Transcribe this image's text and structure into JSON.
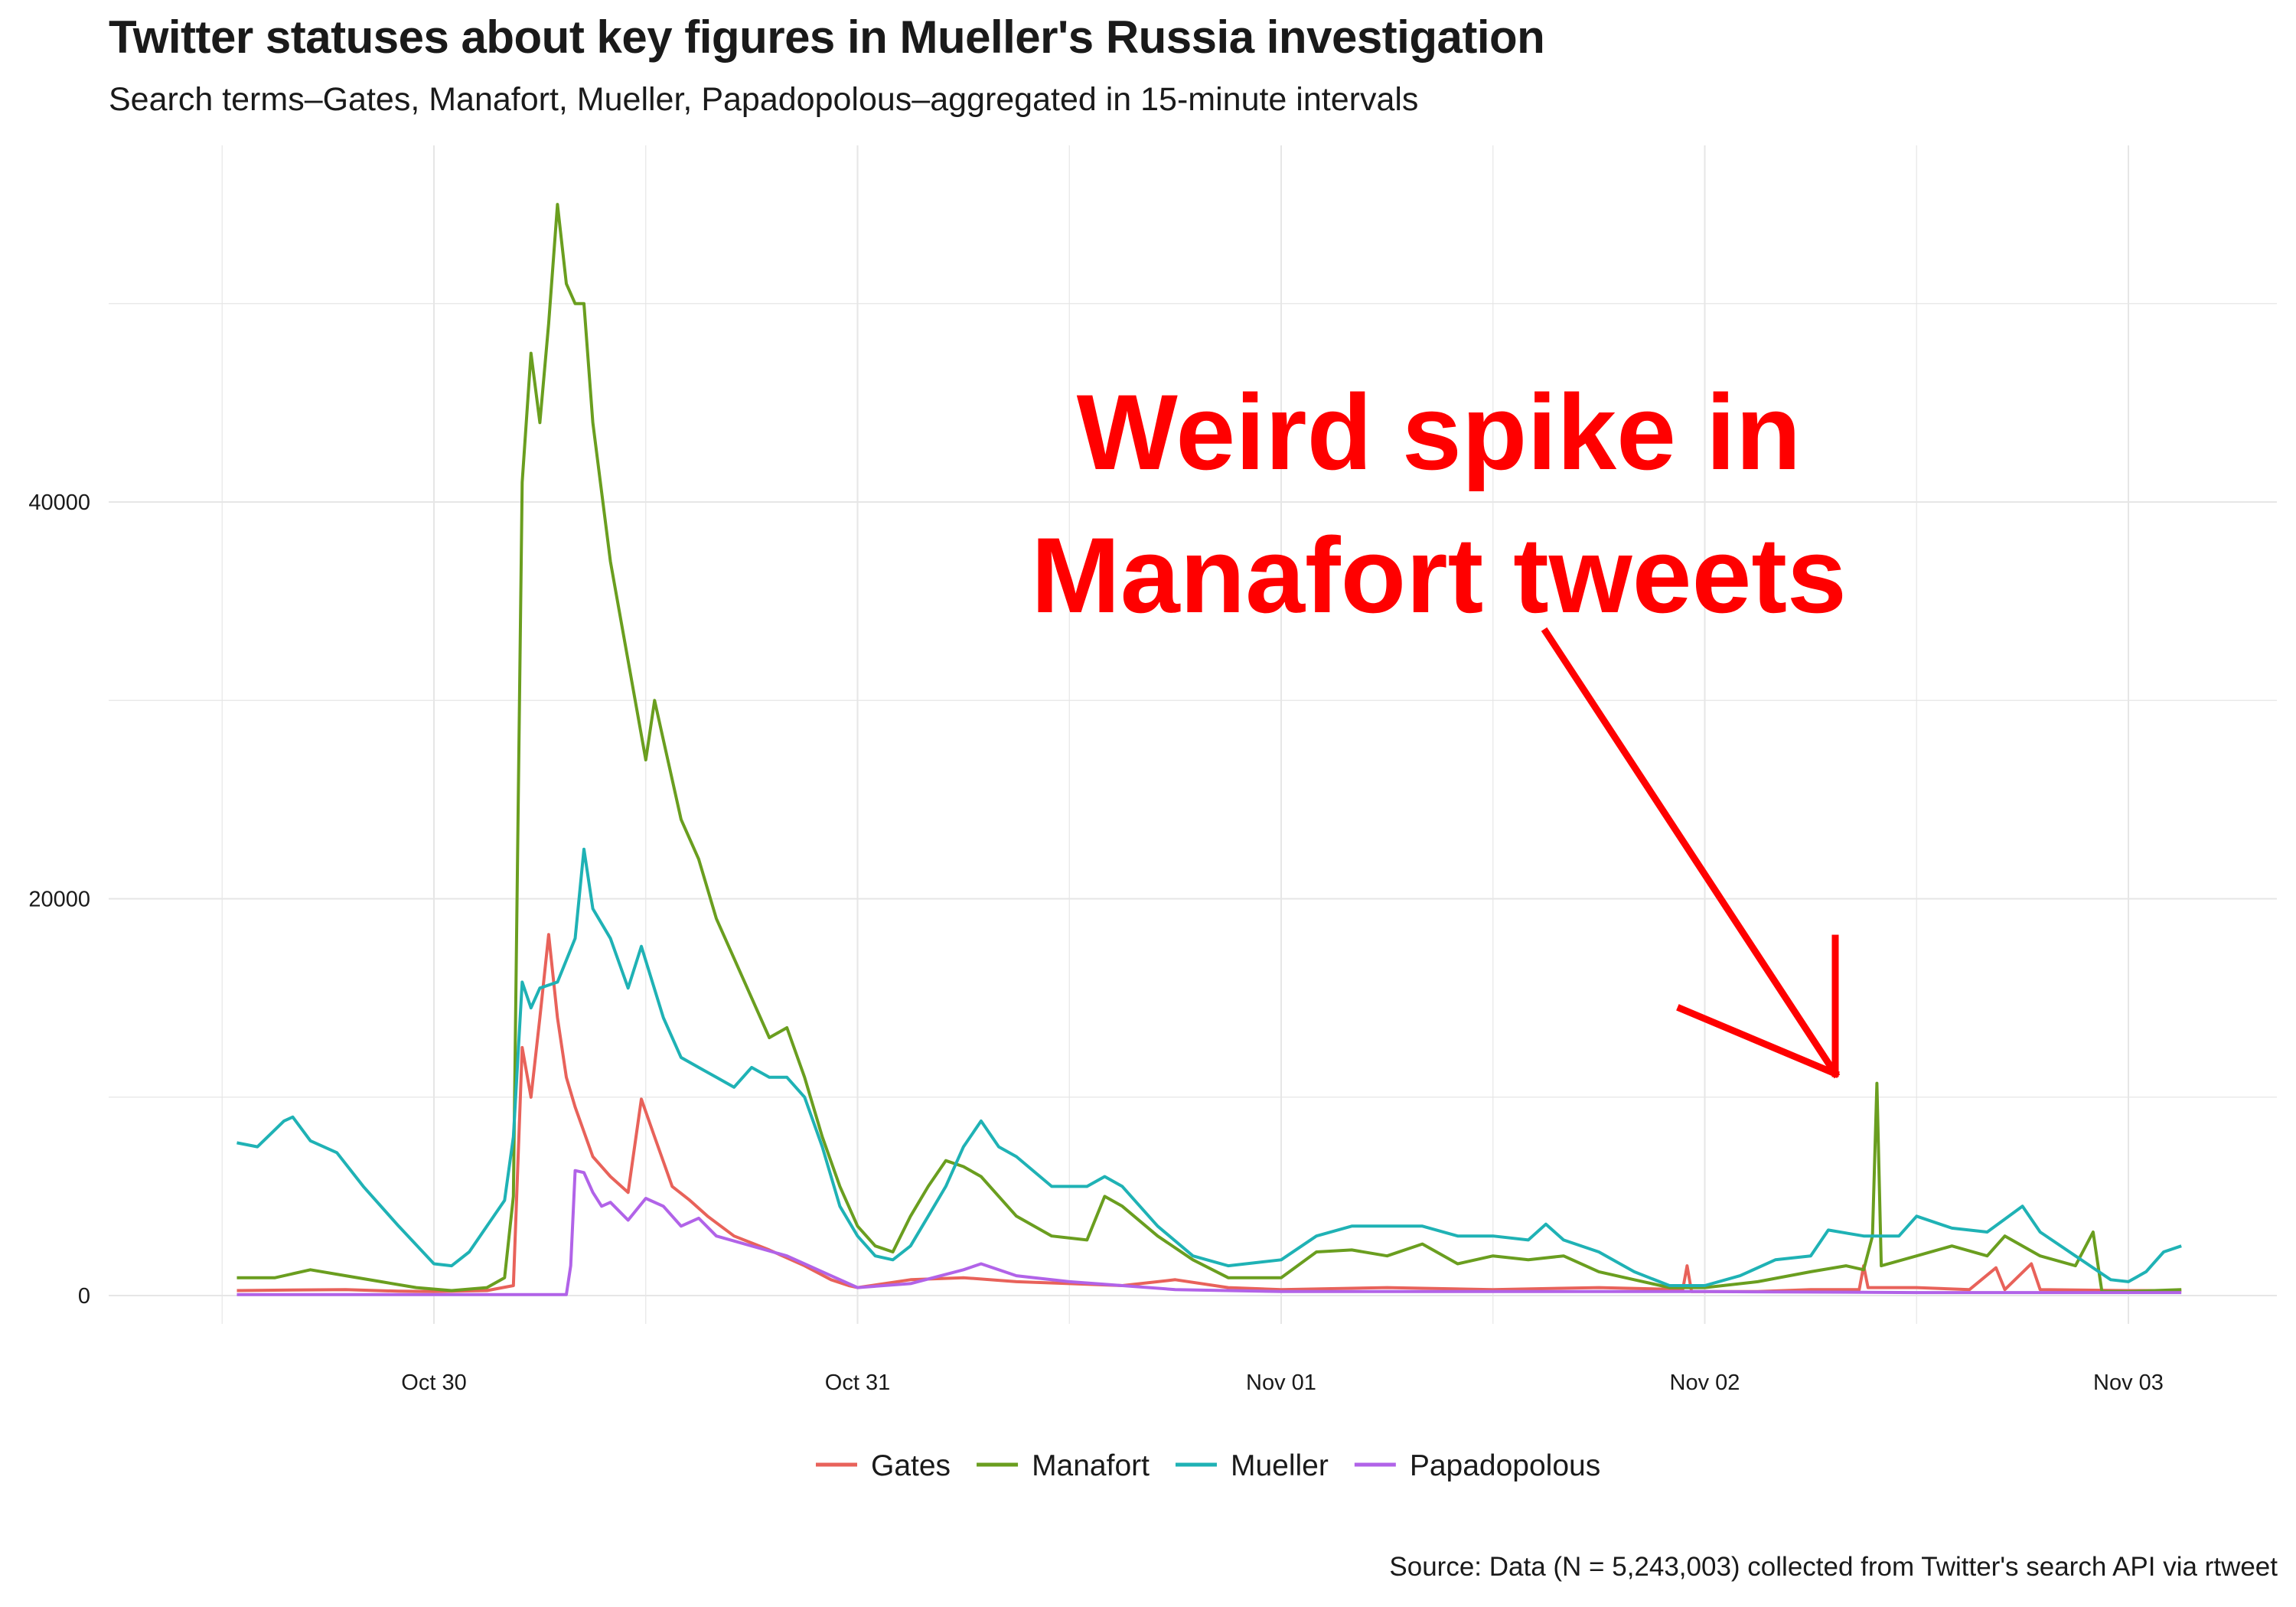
{
  "title": "Twitter statuses about key figures in Mueller's Russia investigation",
  "subtitle": "Search terms–Gates, Manafort, Mueller, Papadopolous–aggregated in 15-minute intervals",
  "caption": "Source: Data (N = 5,243,003) collected from Twitter's search API via rtweet",
  "colors": {
    "grid": "#e6e6e6",
    "annotation": "#ff0000"
  },
  "chart_data": {
    "type": "line",
    "x_unit": "date (2017, hours)",
    "x_range": [
      "Oct 29 12:50",
      "Nov 03 03:00"
    ],
    "x_ticks": [
      "Oct 30",
      "Oct 31",
      "Nov 01",
      "Nov 02",
      "Nov 03"
    ],
    "ylim": [
      0,
      56000
    ],
    "y_ticks": [
      0,
      20000,
      40000
    ],
    "grid": true,
    "legend_position": "bottom",
    "series": [
      {
        "name": "Gates",
        "color": "#e8625a",
        "points": [
          [
            "Oct 29 12:50",
            250
          ],
          [
            "Oct 29 16:00",
            280
          ],
          [
            "Oct 29 19:00",
            300
          ],
          [
            "Oct 29 22:00",
            220
          ],
          [
            "Oct 30 00:00",
            200
          ],
          [
            "Oct 30 03:00",
            250
          ],
          [
            "Oct 30 04:30",
            500
          ],
          [
            "Oct 30 05:00",
            12500
          ],
          [
            "Oct 30 05:30",
            10000
          ],
          [
            "Oct 30 06:00",
            14000
          ],
          [
            "Oct 30 06:30",
            18200
          ],
          [
            "Oct 30 07:00",
            14000
          ],
          [
            "Oct 30 07:30",
            11000
          ],
          [
            "Oct 30 08:00",
            9500
          ],
          [
            "Oct 30 09:00",
            7000
          ],
          [
            "Oct 30 10:00",
            6000
          ],
          [
            "Oct 30 11:00",
            5200
          ],
          [
            "Oct 30 11:45",
            9900
          ],
          [
            "Oct 30 12:30",
            8000
          ],
          [
            "Oct 30 13:30",
            5500
          ],
          [
            "Oct 30 14:30",
            4800
          ],
          [
            "Oct 30 15:30",
            4000
          ],
          [
            "Oct 30 17:00",
            3000
          ],
          [
            "Oct 30 19:00",
            2300
          ],
          [
            "Oct 30 21:00",
            1500
          ],
          [
            "Oct 30 22:30",
            800
          ],
          [
            "Oct 30 23:30",
            500
          ],
          [
            "Oct 31 00:00",
            400
          ],
          [
            "Oct 31 03:00",
            800
          ],
          [
            "Oct 31 06:00",
            900
          ],
          [
            "Oct 31 09:00",
            700
          ],
          [
            "Oct 31 12:00",
            600
          ],
          [
            "Oct 31 15:00",
            500
          ],
          [
            "Oct 31 18:00",
            800
          ],
          [
            "Oct 31 21:00",
            400
          ],
          [
            "Nov 01 00:00",
            300
          ],
          [
            "Nov 01 06:00",
            400
          ],
          [
            "Nov 01 12:00",
            300
          ],
          [
            "Nov 01 18:00",
            400
          ],
          [
            "Nov 01 22:45",
            300
          ],
          [
            "Nov 01 23:00",
            1500
          ],
          [
            "Nov 01 23:15",
            200
          ],
          [
            "Nov 02 03:00",
            200
          ],
          [
            "Nov 02 06:00",
            300
          ],
          [
            "Nov 02 08:45",
            300
          ],
          [
            "Nov 02 09:00",
            1500
          ],
          [
            "Nov 02 09:15",
            400
          ],
          [
            "Nov 02 12:00",
            400
          ],
          [
            "Nov 02 15:00",
            300
          ],
          [
            "Nov 02 16:30",
            1400
          ],
          [
            "Nov 02 17:00",
            300
          ],
          [
            "Nov 02 18:30",
            1600
          ],
          [
            "Nov 02 19:00",
            300
          ],
          [
            "Nov 03 00:00",
            250
          ],
          [
            "Nov 03 03:00",
            250
          ]
        ]
      },
      {
        "name": "Manafort",
        "color": "#6a9e1f",
        "points": [
          [
            "Oct 29 12:50",
            900
          ],
          [
            "Oct 29 15:00",
            900
          ],
          [
            "Oct 29 17:00",
            1300
          ],
          [
            "Oct 29 19:00",
            1000
          ],
          [
            "Oct 29 21:00",
            700
          ],
          [
            "Oct 29 23:00",
            400
          ],
          [
            "Oct 30 01:00",
            250
          ],
          [
            "Oct 30 03:00",
            400
          ],
          [
            "Oct 30 04:00",
            900
          ],
          [
            "Oct 30 04:30",
            5000
          ],
          [
            "Oct 30 05:00",
            41000
          ],
          [
            "Oct 30 05:30",
            47500
          ],
          [
            "Oct 30 06:00",
            44000
          ],
          [
            "Oct 30 06:30",
            49000
          ],
          [
            "Oct 30 07:00",
            55000
          ],
          [
            "Oct 30 07:30",
            51000
          ],
          [
            "Oct 30 08:00",
            50000
          ],
          [
            "Oct 30 08:30",
            50000
          ],
          [
            "Oct 30 09:00",
            44000
          ],
          [
            "Oct 30 10:00",
            37000
          ],
          [
            "Oct 30 11:00",
            32000
          ],
          [
            "Oct 30 12:00",
            27000
          ],
          [
            "Oct 30 12:30",
            30000
          ],
          [
            "Oct 30 13:00",
            28000
          ],
          [
            "Oct 30 14:00",
            24000
          ],
          [
            "Oct 30 15:00",
            22000
          ],
          [
            "Oct 30 16:00",
            19000
          ],
          [
            "Oct 30 17:00",
            17000
          ],
          [
            "Oct 30 18:00",
            15000
          ],
          [
            "Oct 30 19:00",
            13000
          ],
          [
            "Oct 30 20:00",
            13500
          ],
          [
            "Oct 30 21:00",
            11000
          ],
          [
            "Oct 30 22:00",
            8000
          ],
          [
            "Oct 30 23:00",
            5500
          ],
          [
            "Oct 31 00:00",
            3500
          ],
          [
            "Oct 31 01:00",
            2500
          ],
          [
            "Oct 31 02:00",
            2200
          ],
          [
            "Oct 31 03:00",
            4000
          ],
          [
            "Oct 31 04:00",
            5500
          ],
          [
            "Oct 31 05:00",
            6800
          ],
          [
            "Oct 31 06:00",
            6500
          ],
          [
            "Oct 31 07:00",
            6000
          ],
          [
            "Oct 31 08:00",
            5000
          ],
          [
            "Oct 31 09:00",
            4000
          ],
          [
            "Oct 31 11:00",
            3000
          ],
          [
            "Oct 31 13:00",
            2800
          ],
          [
            "Oct 31 14:00",
            5000
          ],
          [
            "Oct 31 15:00",
            4500
          ],
          [
            "Oct 31 17:00",
            3000
          ],
          [
            "Oct 31 19:00",
            1800
          ],
          [
            "Oct 31 21:00",
            900
          ],
          [
            "Nov 01 00:00",
            900
          ],
          [
            "Nov 01 02:00",
            2200
          ],
          [
            "Nov 01 04:00",
            2300
          ],
          [
            "Nov 01 06:00",
            2000
          ],
          [
            "Nov 01 08:00",
            2600
          ],
          [
            "Nov 01 10:00",
            1600
          ],
          [
            "Nov 01 12:00",
            2000
          ],
          [
            "Nov 01 14:00",
            1800
          ],
          [
            "Nov 01 16:00",
            2000
          ],
          [
            "Nov 01 18:00",
            1200
          ],
          [
            "Nov 01 20:00",
            800
          ],
          [
            "Nov 01 22:00",
            400
          ],
          [
            "Nov 02 00:00",
            400
          ],
          [
            "Nov 02 03:00",
            700
          ],
          [
            "Nov 02 06:00",
            1200
          ],
          [
            "Nov 02 08:00",
            1500
          ],
          [
            "Nov 02 09:00",
            1300
          ],
          [
            "Nov 02 09:30",
            3000
          ],
          [
            "Nov 02 09:45",
            10700
          ],
          [
            "Nov 02 10:00",
            1500
          ],
          [
            "Nov 02 12:00",
            2000
          ],
          [
            "Nov 02 14:00",
            2500
          ],
          [
            "Nov 02 16:00",
            2000
          ],
          [
            "Nov 02 17:00",
            3000
          ],
          [
            "Nov 02 19:00",
            2000
          ],
          [
            "Nov 02 21:00",
            1500
          ],
          [
            "Nov 02 22:00",
            3200
          ],
          [
            "Nov 02 22:30",
            200
          ],
          [
            "Nov 03 00:00",
            200
          ],
          [
            "Nov 03 03:00",
            300
          ]
        ]
      },
      {
        "name": "Mueller",
        "color": "#1fb2b5",
        "points": [
          [
            "Oct 29 12:50",
            7700
          ],
          [
            "Oct 29 14:00",
            7500
          ],
          [
            "Oct 29 15:30",
            8800
          ],
          [
            "Oct 29 16:00",
            9000
          ],
          [
            "Oct 29 17:00",
            7800
          ],
          [
            "Oct 29 18:30",
            7200
          ],
          [
            "Oct 29 20:00",
            5500
          ],
          [
            "Oct 29 22:00",
            3500
          ],
          [
            "Oct 30 00:00",
            1600
          ],
          [
            "Oct 30 01:00",
            1500
          ],
          [
            "Oct 30 02:00",
            2200
          ],
          [
            "Oct 30 03:00",
            3500
          ],
          [
            "Oct 30 04:00",
            4800
          ],
          [
            "Oct 30 04:30",
            8000
          ],
          [
            "Oct 30 05:00",
            15800
          ],
          [
            "Oct 30 05:30",
            14500
          ],
          [
            "Oct 30 06:00",
            15500
          ],
          [
            "Oct 30 07:00",
            15800
          ],
          [
            "Oct 30 08:00",
            18000
          ],
          [
            "Oct 30 08:30",
            22500
          ],
          [
            "Oct 30 09:00",
            19500
          ],
          [
            "Oct 30 10:00",
            18000
          ],
          [
            "Oct 30 11:00",
            15500
          ],
          [
            "Oct 30 11:45",
            17600
          ],
          [
            "Oct 30 13:00",
            14000
          ],
          [
            "Oct 30 14:00",
            12000
          ],
          [
            "Oct 30 15:00",
            11500
          ],
          [
            "Oct 30 16:00",
            11000
          ],
          [
            "Oct 30 17:00",
            10500
          ],
          [
            "Oct 30 18:00",
            11500
          ],
          [
            "Oct 30 19:00",
            11000
          ],
          [
            "Oct 30 20:00",
            11000
          ],
          [
            "Oct 30 21:00",
            10000
          ],
          [
            "Oct 30 22:00",
            7500
          ],
          [
            "Oct 30 23:00",
            4500
          ],
          [
            "Oct 31 00:00",
            3000
          ],
          [
            "Oct 31 01:00",
            2000
          ],
          [
            "Oct 31 02:00",
            1800
          ],
          [
            "Oct 31 03:00",
            2500
          ],
          [
            "Oct 31 04:00",
            4000
          ],
          [
            "Oct 31 05:00",
            5500
          ],
          [
            "Oct 31 06:00",
            7500
          ],
          [
            "Oct 31 07:00",
            8800
          ],
          [
            "Oct 31 08:00",
            7500
          ],
          [
            "Oct 31 09:00",
            7000
          ],
          [
            "Oct 31 11:00",
            5500
          ],
          [
            "Oct 31 13:00",
            5500
          ],
          [
            "Oct 31 14:00",
            6000
          ],
          [
            "Oct 31 15:00",
            5500
          ],
          [
            "Oct 31 17:00",
            3500
          ],
          [
            "Oct 31 19:00",
            2000
          ],
          [
            "Oct 31 21:00",
            1500
          ],
          [
            "Nov 01 00:00",
            1800
          ],
          [
            "Nov 01 02:00",
            3000
          ],
          [
            "Nov 01 04:00",
            3500
          ],
          [
            "Nov 01 06:00",
            3500
          ],
          [
            "Nov 01 08:00",
            3500
          ],
          [
            "Nov 01 10:00",
            3000
          ],
          [
            "Nov 01 12:00",
            3000
          ],
          [
            "Nov 01 14:00",
            2800
          ],
          [
            "Nov 01 15:00",
            3600
          ],
          [
            "Nov 01 16:00",
            2800
          ],
          [
            "Nov 01 18:00",
            2200
          ],
          [
            "Nov 01 20:00",
            1200
          ],
          [
            "Nov 01 22:00",
            500
          ],
          [
            "Nov 02 00:00",
            500
          ],
          [
            "Nov 02 02:00",
            1000
          ],
          [
            "Nov 02 04:00",
            1800
          ],
          [
            "Nov 02 06:00",
            2000
          ],
          [
            "Nov 02 07:00",
            3300
          ],
          [
            "Nov 02 09:00",
            3000
          ],
          [
            "Nov 02 11:00",
            3000
          ],
          [
            "Nov 02 12:00",
            4000
          ],
          [
            "Nov 02 14:00",
            3400
          ],
          [
            "Nov 02 16:00",
            3200
          ],
          [
            "Nov 02 18:00",
            4500
          ],
          [
            "Nov 02 19:00",
            3200
          ],
          [
            "Nov 02 21:00",
            2000
          ],
          [
            "Nov 02 23:00",
            800
          ],
          [
            "Nov 03 00:00",
            700
          ],
          [
            "Nov 03 01:00",
            1200
          ],
          [
            "Nov 03 02:00",
            2200
          ],
          [
            "Nov 03 03:00",
            2500
          ]
        ]
      },
      {
        "name": "Papadopolous",
        "color": "#b163e8",
        "points": [
          [
            "Oct 29 12:50",
            50
          ],
          [
            "Oct 29 18:00",
            50
          ],
          [
            "Oct 30 00:00",
            50
          ],
          [
            "Oct 30 06:00",
            50
          ],
          [
            "Oct 30 07:30",
            50
          ],
          [
            "Oct 30 07:45",
            1500
          ],
          [
            "Oct 30 08:00",
            6300
          ],
          [
            "Oct 30 08:30",
            6200
          ],
          [
            "Oct 30 09:00",
            5200
          ],
          [
            "Oct 30 09:30",
            4500
          ],
          [
            "Oct 30 10:00",
            4700
          ],
          [
            "Oct 30 11:00",
            3800
          ],
          [
            "Oct 30 12:00",
            4900
          ],
          [
            "Oct 30 13:00",
            4500
          ],
          [
            "Oct 30 14:00",
            3500
          ],
          [
            "Oct 30 15:00",
            3900
          ],
          [
            "Oct 30 16:00",
            3000
          ],
          [
            "Oct 30 18:00",
            2500
          ],
          [
            "Oct 30 20:00",
            2000
          ],
          [
            "Oct 30 22:00",
            1200
          ],
          [
            "Oct 31 00:00",
            400
          ],
          [
            "Oct 31 03:00",
            600
          ],
          [
            "Oct 31 06:00",
            1300
          ],
          [
            "Oct 31 07:00",
            1600
          ],
          [
            "Oct 31 09:00",
            1000
          ],
          [
            "Oct 31 12:00",
            700
          ],
          [
            "Oct 31 15:00",
            500
          ],
          [
            "Oct 31 18:00",
            300
          ],
          [
            "Nov 01 00:00",
            200
          ],
          [
            "Nov 01 06:00",
            200
          ],
          [
            "Nov 01 12:00",
            200
          ],
          [
            "Nov 02 00:00",
            200
          ],
          [
            "Nov 02 12:00",
            150
          ],
          [
            "Nov 03 00:00",
            150
          ],
          [
            "Nov 03 03:00",
            150
          ]
        ]
      }
    ],
    "annotation": {
      "text_lines": [
        "Weird spike in",
        "Manafort tweets"
      ]
    }
  }
}
